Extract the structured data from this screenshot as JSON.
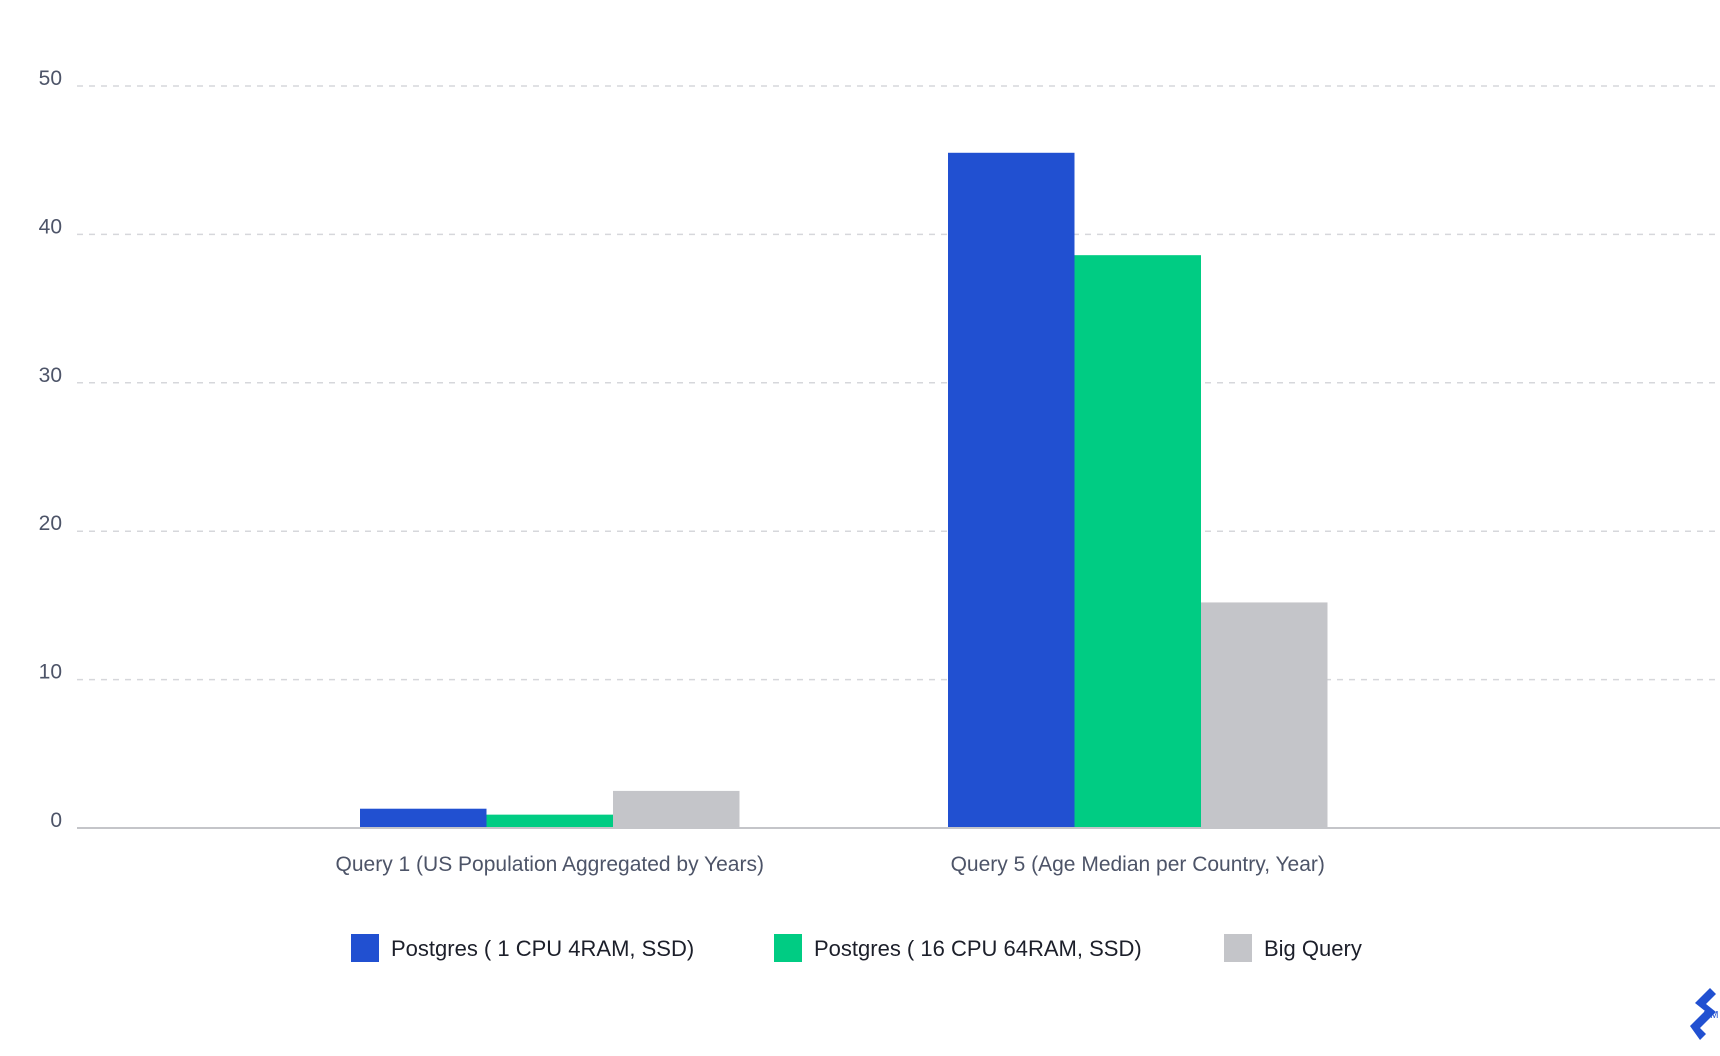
{
  "chart_data": {
    "type": "bar",
    "title": "",
    "xlabel": "",
    "ylabel": "",
    "ylim": [
      0,
      50
    ],
    "yticks": [
      0,
      10,
      20,
      30,
      40,
      50
    ],
    "grid": true,
    "legend_position": "bottom",
    "categories": [
      "Query 1 (US Population Aggregated by Years)",
      "Query 5 (Age Median per Country, Year)"
    ],
    "series": [
      {
        "name": "Postgres ( 1 CPU 4RAM, SSD)",
        "color": "#2150d1",
        "values": [
          1.3,
          45.5
        ]
      },
      {
        "name": "Postgres ( 16 CPU 64RAM, SSD)",
        "color": "#00cc83",
        "values": [
          0.9,
          38.6
        ]
      },
      {
        "name": "Big Query",
        "color": "#c4c5c9",
        "values": [
          2.5,
          15.2
        ]
      }
    ]
  },
  "logo": {
    "text": "TM",
    "color": "#2150d1"
  }
}
